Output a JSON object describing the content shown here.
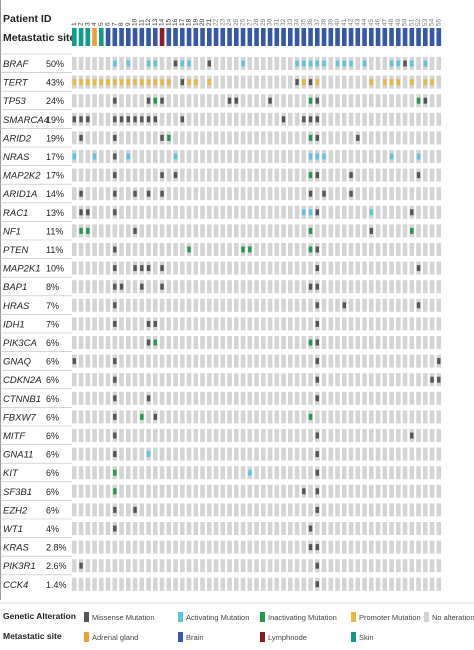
{
  "chart_data": {
    "type": "heatmap",
    "header": {
      "patient_id_label": "Patient ID",
      "metastatic_site_label": "Metastatic site"
    },
    "patient_ids": [
      "1",
      "2",
      "3",
      "4",
      "5",
      "6",
      "7",
      "8",
      "9",
      "10",
      "11",
      "12",
      "13",
      "14",
      "15",
      "16",
      "17",
      "18",
      "19",
      "20",
      "21",
      "22",
      "23",
      "24",
      "25",
      "26",
      "27",
      "28",
      "29",
      "30",
      "31",
      "32",
      "33",
      "34",
      "35",
      "36",
      "37",
      "38",
      "39",
      "40",
      "41",
      "42",
      "43",
      "44",
      "45",
      "46",
      "47",
      "48",
      "49",
      "50",
      "51",
      "52",
      "53",
      "54",
      "55"
    ],
    "visible_patient_labels": [
      "1",
      "2",
      "3",
      "4",
      "5",
      "6",
      "7",
      "8",
      "9",
      "10",
      "11",
      "12",
      "13",
      "14",
      "15",
      "16",
      "17",
      "18",
      "19",
      "20",
      "21"
    ],
    "metastatic_sites": [
      "skin",
      "skin",
      "skin",
      "adrenal",
      "skin",
      "brain",
      "brain",
      "brain",
      "brain",
      "brain",
      "brain",
      "brain",
      "brain",
      "lymph",
      "brain",
      "brain",
      "brain",
      "brain",
      "brain",
      "brain",
      "brain",
      "brain",
      "brain",
      "brain",
      "brain",
      "brain",
      "brain",
      "brain",
      "brain",
      "brain",
      "brain",
      "brain",
      "brain",
      "brain",
      "brain",
      "brain",
      "brain",
      "brain",
      "brain",
      "brain",
      "brain",
      "brain",
      "brain",
      "brain",
      "brain",
      "brain",
      "brain",
      "brain",
      "brain",
      "brain",
      "brain",
      "brain",
      "brain",
      "brain",
      "brain"
    ],
    "genes": [
      {
        "name": "BRAF",
        "pct": "50%",
        "cells": {
          "6": "act",
          "8": "act",
          "11": "act",
          "12": "act",
          "15": "mis",
          "16": "act",
          "17": "act",
          "20": "mis",
          "25": "act",
          "33": "act",
          "34": "act",
          "35": "act",
          "36": "act",
          "37": "act",
          "39": "act",
          "40": "act",
          "41": "act",
          "43": "act",
          "47": "act",
          "48": "act",
          "49": "mis",
          "50": "act",
          "52": "act"
        }
      },
      {
        "name": "TERT",
        "pct": "43%",
        "cells": {
          "0": "prom",
          "1": "prom",
          "2": "prom",
          "3": "prom",
          "4": "prom",
          "5": "prom",
          "6": "prom",
          "7": "prom",
          "8": "prom",
          "9": "prom",
          "10": "prom",
          "11": "prom",
          "12": "prom",
          "13": "prom",
          "14": "prom",
          "16": "mis",
          "17": "prom",
          "18": "prom",
          "20": "prom",
          "33": "mis",
          "34": "prom",
          "35": "mis",
          "36": "prom",
          "44": "prom",
          "46": "prom",
          "47": "prom",
          "48": "prom",
          "50": "prom",
          "52": "prom",
          "53": "prom"
        }
      },
      {
        "name": "TP53",
        "pct": "24%",
        "cells": {
          "6": "mis",
          "11": "mis",
          "12": "inact",
          "13": "mis",
          "23": "mis",
          "24": "mis",
          "29": "mis",
          "35": "inact",
          "36": "mis",
          "51": "inact",
          "52": "mis",
          "55": "mis"
        }
      },
      {
        "name": "SMARCA4",
        "pct": "19%",
        "cells": {
          "0": "mis",
          "1": "mis",
          "2": "mis",
          "6": "mis",
          "7": "mis",
          "8": "mis",
          "9": "mis",
          "10": "mis",
          "11": "mis",
          "12": "mis",
          "16": "mis",
          "31": "mis",
          "34": "mis",
          "35": "mis",
          "36": "mis"
        }
      },
      {
        "name": "ARID2",
        "pct": "19%",
        "cells": {
          "1": "mis",
          "6": "mis",
          "13": "mis",
          "14": "inact",
          "35": "inact",
          "36": "mis",
          "42": "mis"
        }
      },
      {
        "name": "NRAS",
        "pct": "17%",
        "cells": {
          "0": "act",
          "3": "act",
          "6": "mis",
          "8": "act",
          "15": "act",
          "35": "act",
          "36": "act",
          "37": "act",
          "47": "act",
          "51": "act",
          "56": "act"
        }
      },
      {
        "name": "MAP2K2",
        "pct": "17%",
        "cells": {
          "6": "mis",
          "13": "mis",
          "15": "mis",
          "35": "inact",
          "36": "mis",
          "41": "mis",
          "51": "mis"
        }
      },
      {
        "name": "ARID1A",
        "pct": "14%",
        "cells": {
          "1": "mis",
          "6": "mis",
          "9": "mis",
          "11": "mis",
          "13": "mis",
          "35": "mis",
          "37": "mis",
          "41": "mis"
        }
      },
      {
        "name": "RAC1",
        "pct": "13%",
        "cells": {
          "1": "mis",
          "2": "mis",
          "6": "mis",
          "34": "act",
          "35": "act",
          "36": "mis",
          "44": "act",
          "50": "mis"
        }
      },
      {
        "name": "NF1",
        "pct": "11%",
        "cells": {
          "1": "inact",
          "2": "inact",
          "9": "mis",
          "35": "inact",
          "44": "mis",
          "50": "inact"
        }
      },
      {
        "name": "PTEN",
        "pct": "11%",
        "cells": {
          "6": "mis",
          "17": "inact",
          "25": "inact",
          "26": "inact",
          "35": "inact",
          "36": "mis"
        }
      },
      {
        "name": "MAP2K1",
        "pct": "10%",
        "cells": {
          "6": "mis",
          "9": "mis",
          "10": "mis",
          "11": "mis",
          "13": "mis",
          "36": "mis",
          "51": "mis"
        }
      },
      {
        "name": "BAP1",
        "pct": "8%",
        "cells": {
          "6": "mis",
          "7": "mis",
          "10": "mis",
          "13": "mis",
          "35": "mis",
          "36": "mis"
        }
      },
      {
        "name": "HRAS",
        "pct": "7%",
        "cells": {
          "6": "mis",
          "36": "mis",
          "40": "mis",
          "51": "mis"
        }
      },
      {
        "name": "IDH1",
        "pct": "7%",
        "cells": {
          "6": "mis",
          "11": "mis",
          "12": "mis",
          "36": "mis"
        }
      },
      {
        "name": "PIK3CA",
        "pct": "6%",
        "cells": {
          "11": "mis",
          "12": "inact",
          "35": "inact",
          "36": "mis"
        }
      },
      {
        "name": "GNAQ",
        "pct": "6%",
        "cells": {
          "0": "mis",
          "6": "mis",
          "36": "mis",
          "54": "mis"
        }
      },
      {
        "name": "CDKN2A",
        "pct": "6%",
        "cells": {
          "6": "mis",
          "36": "mis",
          "53": "mis",
          "54": "mis"
        }
      },
      {
        "name": "CTNNB1",
        "pct": "6%",
        "cells": {
          "6": "mis",
          "11": "mis",
          "36": "mis"
        }
      },
      {
        "name": "FBXW7",
        "pct": "6%",
        "cells": {
          "6": "mis",
          "10": "inact",
          "12": "mis",
          "35": "inact"
        }
      },
      {
        "name": "MITF",
        "pct": "6%",
        "cells": {
          "6": "mis",
          "36": "mis",
          "50": "mis"
        }
      },
      {
        "name": "GNA11",
        "pct": "6%",
        "cells": {
          "6": "mis",
          "11": "act",
          "36": "mis"
        }
      },
      {
        "name": "KIT",
        "pct": "6%",
        "cells": {
          "6": "inact",
          "26": "act",
          "36": "mis"
        }
      },
      {
        "name": "SF3B1",
        "pct": "6%",
        "cells": {
          "6": "inact",
          "34": "mis",
          "36": "mis"
        }
      },
      {
        "name": "EZH2",
        "pct": "6%",
        "cells": {
          "6": "mis",
          "9": "mis",
          "36": "mis"
        }
      },
      {
        "name": "WT1",
        "pct": "4%",
        "cells": {
          "6": "mis",
          "35": "mis"
        }
      },
      {
        "name": "KRAS",
        "pct": "2.8%",
        "cells": {
          "35": "mis",
          "36": "mis"
        }
      },
      {
        "name": "PIK3R1",
        "pct": "2.6%",
        "cells": {
          "1": "mis",
          "36": "mis"
        }
      },
      {
        "name": "CCK4",
        "pct": "1.4%",
        "cells": {
          "36": "mis"
        }
      }
    ],
    "legend": {
      "genetic_alteration": {
        "title": "Genetic Alteration",
        "items": [
          {
            "key": "mis",
            "label": "Missense Mutation"
          },
          {
            "key": "act",
            "label": "Activating Mutation"
          },
          {
            "key": "inact",
            "label": "Inactivating Mutation"
          },
          {
            "key": "prom",
            "label": "Promoter Mutation"
          },
          {
            "key": "none",
            "label": "No alterations"
          }
        ]
      },
      "metastatic_site": {
        "title": "Metastatic site",
        "items": [
          {
            "key": "adrenal",
            "label": "Adrenal gland"
          },
          {
            "key": "brain",
            "label": "Brain"
          },
          {
            "key": "lymph",
            "label": "Lymphnode"
          },
          {
            "key": "skin",
            "label": "Skin"
          }
        ]
      }
    },
    "colors": {
      "none": "#d4d4d4",
      "mis": "#555555",
      "act": "#5bc4e5",
      "inact": "#1f9a4e",
      "prom": "#e8b83a",
      "brain": "#3559a8",
      "skin": "#0e9c8c",
      "adrenal": "#f0a030",
      "lymph": "#8b1c24"
    }
  }
}
